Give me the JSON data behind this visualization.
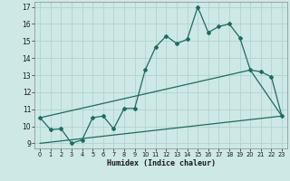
{
  "xlabel": "Humidex (Indice chaleur)",
  "xlim": [
    -0.5,
    23.5
  ],
  "ylim": [
    8.7,
    17.3
  ],
  "yticks": [
    9,
    10,
    11,
    12,
    13,
    14,
    15,
    16,
    17
  ],
  "xticks": [
    0,
    1,
    2,
    3,
    4,
    5,
    6,
    7,
    8,
    9,
    10,
    11,
    12,
    13,
    14,
    15,
    16,
    17,
    18,
    19,
    20,
    21,
    22,
    23
  ],
  "bg_color": "#cde8e5",
  "grid_color": "#b0d4d0",
  "line_color": "#1e6b60",
  "line1_x": [
    0,
    1,
    2,
    3,
    4,
    5,
    6,
    7,
    8,
    9,
    10,
    11,
    12,
    13,
    14,
    15,
    16,
    17,
    18,
    19,
    20,
    21,
    22,
    23
  ],
  "line1_y": [
    10.5,
    9.8,
    9.85,
    9.0,
    9.2,
    10.5,
    10.6,
    9.85,
    11.05,
    11.05,
    13.3,
    14.65,
    15.3,
    14.85,
    15.1,
    17.0,
    15.5,
    15.85,
    16.0,
    15.2,
    13.3,
    13.2,
    12.9,
    10.6
  ],
  "line2_x": [
    0,
    20,
    23
  ],
  "line2_y": [
    10.5,
    13.3,
    10.6
  ],
  "line3_x": [
    0,
    23
  ],
  "line3_y": [
    9.0,
    10.6
  ]
}
